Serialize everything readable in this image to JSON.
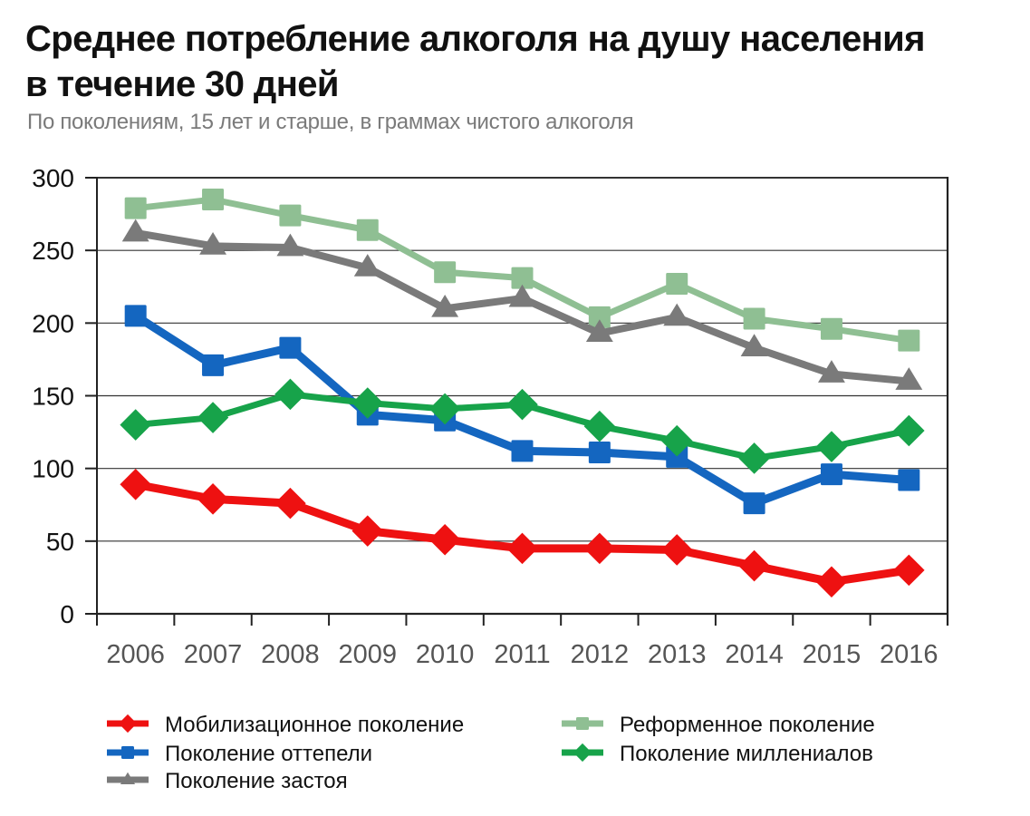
{
  "header": {
    "title_line1": "Среднее потребление алкоголя на душу населения",
    "title_line2": "в течение 30 дней",
    "subtitle": "По поколениям, 15 лет и старше, в граммах чистого алкоголя"
  },
  "chart_data": {
    "type": "line",
    "title": "Среднее потребление алкоголя на душу населения в течение 30 дней",
    "subtitle": "По поколениям, 15 лет и старше, в граммах чистого алкоголя",
    "xlabel": "",
    "ylabel": "",
    "categories": [
      "2006",
      "2007",
      "2008",
      "2009",
      "2010",
      "2011",
      "2012",
      "2013",
      "2014",
      "2015",
      "2016"
    ],
    "ylim": [
      0,
      300
    ],
    "yticks": [
      0,
      50,
      100,
      150,
      200,
      250,
      300
    ],
    "grid": true,
    "legend_position": "bottom",
    "series": [
      {
        "name": "Реформенное поколение",
        "color": "#8fbf93",
        "marker": "square",
        "values": [
          279,
          285,
          274,
          264,
          235,
          231,
          204,
          227,
          203,
          196,
          188
        ]
      },
      {
        "name": "Поколение застоя",
        "color": "#7a7a7a",
        "marker": "triangle",
        "values": [
          262,
          253,
          252,
          238,
          210,
          217,
          193,
          204,
          183,
          165,
          160
        ]
      },
      {
        "name": "Поколение оттепели",
        "color": "#1466c0",
        "marker": "square",
        "values": [
          205,
          171,
          183,
          137,
          133,
          112,
          111,
          108,
          76,
          96,
          92
        ]
      },
      {
        "name": "Поколение миллениалов",
        "color": "#17a34a",
        "marker": "diamond",
        "values": [
          130,
          135,
          151,
          145,
          141,
          144,
          129,
          119,
          107,
          115,
          126
        ]
      },
      {
        "name": "Мобилизационное поколение",
        "color": "#ee1111",
        "marker": "diamond",
        "values": [
          89,
          79,
          76,
          57,
          51,
          45,
          45,
          44,
          33,
          22,
          30
        ]
      }
    ],
    "legend": [
      {
        "name": "Мобилизационное поколение",
        "series": 4
      },
      {
        "name": "Поколение оттепели",
        "series": 2
      },
      {
        "name": "Поколение застоя",
        "series": 1
      },
      {
        "name": "Реформенное поколение",
        "series": 0
      },
      {
        "name": "Поколение миллениалов",
        "series": 3
      }
    ]
  }
}
